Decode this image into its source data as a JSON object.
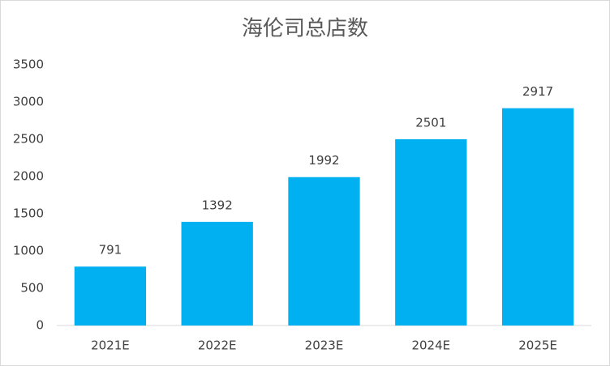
{
  "chart_data": {
    "type": "bar",
    "title": "海伦司总店数",
    "categories": [
      "2021E",
      "2022E",
      "2023E",
      "2024E",
      "2025E"
    ],
    "values": [
      791,
      1392,
      1992,
      2501,
      2917
    ],
    "color": "#00b0f0",
    "ylim": [
      0,
      3500
    ],
    "yticks": [
      0,
      500,
      1000,
      1500,
      2000,
      2500,
      3000,
      3500
    ],
    "grid": false
  }
}
